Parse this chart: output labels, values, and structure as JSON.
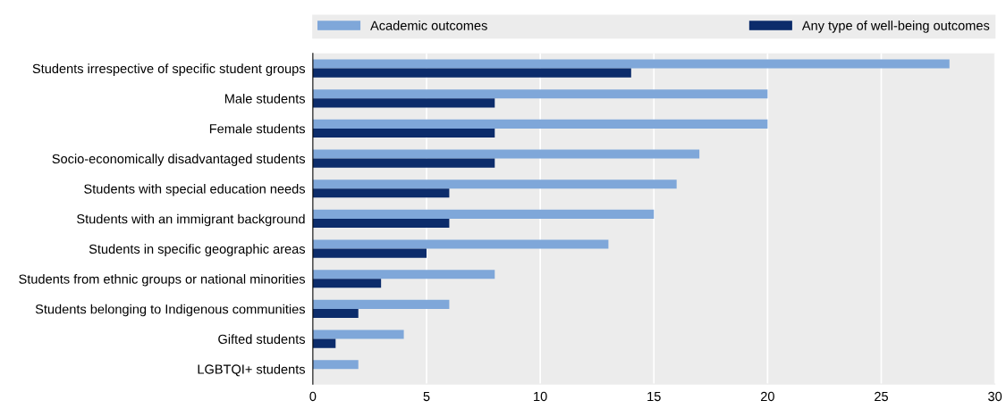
{
  "chart_data": {
    "type": "bar",
    "orientation": "horizontal",
    "categories": [
      "Students irrespective of specific student groups",
      "Male students",
      "Female students",
      "Socio-economically disadvantaged students",
      "Students with special education needs",
      "Students with an immigrant background",
      "Students in specific geographic areas",
      "Students from ethnic groups or national minorities",
      "Students belonging to Indigenous communities",
      "Gifted students",
      "LGBTQI+ students"
    ],
    "series": [
      {
        "name": "Academic outcomes",
        "color": "#7fa7d9",
        "values": [
          28,
          20,
          20,
          17,
          16,
          15,
          13,
          8,
          6,
          4,
          2
        ]
      },
      {
        "name": "Any type of well-being outcomes",
        "color": "#0c2c6b",
        "values": [
          14,
          8,
          8,
          8,
          6,
          6,
          5,
          3,
          2,
          1,
          0
        ]
      }
    ],
    "xlim": [
      0,
      30
    ],
    "xticks": [
      0,
      5,
      10,
      15,
      20,
      25,
      30
    ],
    "grid": "x",
    "legend": "top"
  }
}
